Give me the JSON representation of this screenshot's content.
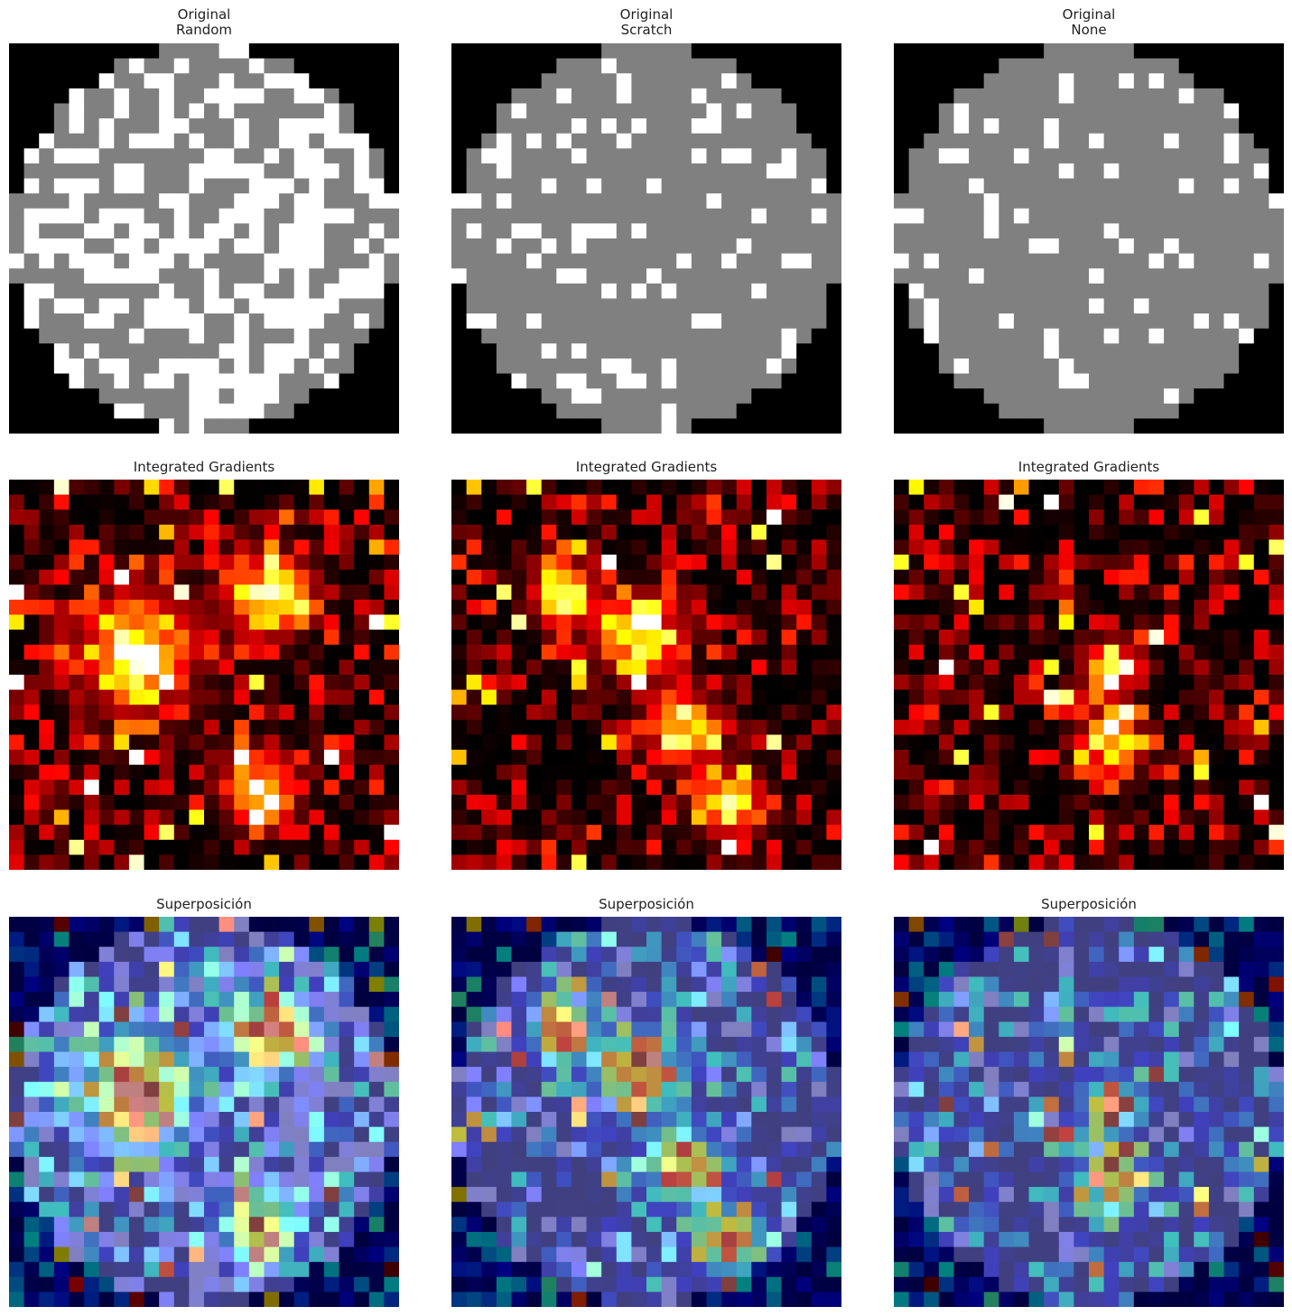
{
  "figure": {
    "columns": [
      "Random",
      "Scratch",
      "None"
    ],
    "row_titles": {
      "original": "Original",
      "ig": "Integrated Gradients",
      "overlay": "Superposición"
    }
  },
  "chart_data": [
    {
      "type": "heatmap",
      "title": "Original\nRandom",
      "grid": false,
      "colormap": "gray",
      "grid_size": [
        26,
        26
      ],
      "ellipse": {
        "cx": 12.5,
        "cy": 12.5,
        "rx": 12.8,
        "ry": 12.8
      },
      "dark_fraction": 0.52,
      "seed": 11
    },
    {
      "type": "heatmap",
      "title": "Original\nScratch",
      "grid": false,
      "colormap": "gray",
      "grid_size": [
        26,
        26
      ],
      "ellipse": {
        "cx": 12.5,
        "cy": 12.5,
        "rx": 12.8,
        "ry": 12.8
      },
      "dark_fraction": 0.82,
      "seed": 23
    },
    {
      "type": "heatmap",
      "title": "Original\nNone",
      "grid": false,
      "colormap": "gray",
      "grid_size": [
        26,
        26
      ],
      "ellipse": {
        "cx": 12.5,
        "cy": 12.5,
        "rx": 12.8,
        "ry": 12.8
      },
      "dark_fraction": 0.88,
      "seed": 37
    },
    {
      "type": "heatmap",
      "title": "Integrated Gradients",
      "grid": false,
      "colormap": "hot",
      "grid_size": [
        26,
        26
      ],
      "seed": 41,
      "hotspots": [
        [
          8,
          11,
          2.6
        ],
        [
          17,
          7,
          1.8
        ],
        [
          16,
          20,
          1.6
        ]
      ]
    },
    {
      "type": "heatmap",
      "title": "Integrated Gradients",
      "grid": false,
      "colormap": "hot",
      "grid_size": [
        26,
        26
      ],
      "seed": 53,
      "hotspots": [
        [
          12,
          10,
          1.8
        ],
        [
          7,
          7,
          1.4
        ],
        [
          15,
          16,
          1.6
        ],
        [
          18,
          21,
          1.5
        ]
      ]
    },
    {
      "type": "heatmap",
      "title": "Integrated Gradients",
      "grid": false,
      "colormap": "hot",
      "grid_size": [
        26,
        26
      ],
      "seed": 67,
      "hotspots": [
        [
          14,
          12,
          1.2
        ],
        [
          14,
          17,
          1.4
        ]
      ]
    },
    {
      "type": "heatmap",
      "title": "Superposición",
      "grid": false,
      "colormap": "jet overlay",
      "source_panels": [
        0,
        3
      ]
    },
    {
      "type": "heatmap",
      "title": "Superposición",
      "grid": false,
      "colormap": "jet overlay",
      "source_panels": [
        1,
        4
      ]
    },
    {
      "type": "heatmap",
      "title": "Superposición",
      "grid": false,
      "colormap": "jet overlay",
      "source_panels": [
        2,
        5
      ]
    }
  ]
}
